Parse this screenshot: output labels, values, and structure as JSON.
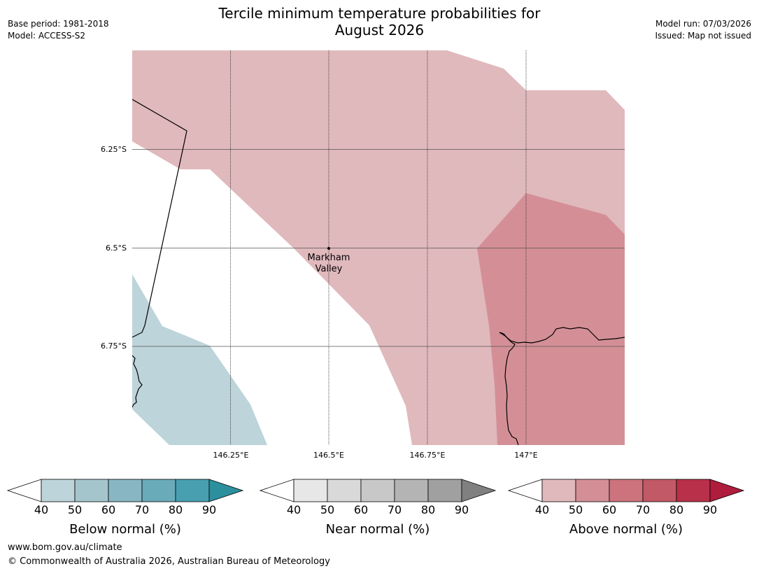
{
  "header": {
    "title_line1": "Tercile minimum temperature probabilities for",
    "title_line2": "August 2026",
    "base_period": "Base period: 1981-2018",
    "model": "Model: ACCESS-S2",
    "model_run": "Model run: 07/03/2026",
    "issued": "Issued: Map not issued"
  },
  "map": {
    "lat_labels": [
      "6.25°S",
      "6.5°S",
      "6.75°S"
    ],
    "lon_labels": [
      "146.25°E",
      "146.5°E",
      "146.75°E",
      "147°E"
    ],
    "place": {
      "name_line1": "Markham",
      "name_line2": "Valley"
    }
  },
  "colorbars": [
    {
      "label": "Below normal (%)",
      "ticks": [
        "40",
        "50",
        "60",
        "70",
        "80",
        "90"
      ],
      "colors": [
        "#ffffff",
        "#bdd4da",
        "#a4c5cb",
        "#88b7c3",
        "#6aabb9",
        "#489fb0",
        "#2c8f9e"
      ]
    },
    {
      "label": "Near normal (%)",
      "ticks": [
        "40",
        "50",
        "60",
        "70",
        "80",
        "90"
      ],
      "colors": [
        "#ffffff",
        "#e7e7e7",
        "#d9d9d9",
        "#c8c8c8",
        "#b4b4b4",
        "#a0a0a0",
        "#808080"
      ]
    },
    {
      "label": "Above normal (%)",
      "ticks": [
        "40",
        "50",
        "60",
        "70",
        "80",
        "90"
      ],
      "colors": [
        "#ffffff",
        "#e0b9bd",
        "#d48f96",
        "#cc737d",
        "#c25966",
        "#b8304a",
        "#b01c3c"
      ]
    }
  ],
  "footer": {
    "url": "www.bom.gov.au/climate",
    "copyright": "© Commonwealth of Australia 2026, Australian Bureau of Meteorology"
  }
}
